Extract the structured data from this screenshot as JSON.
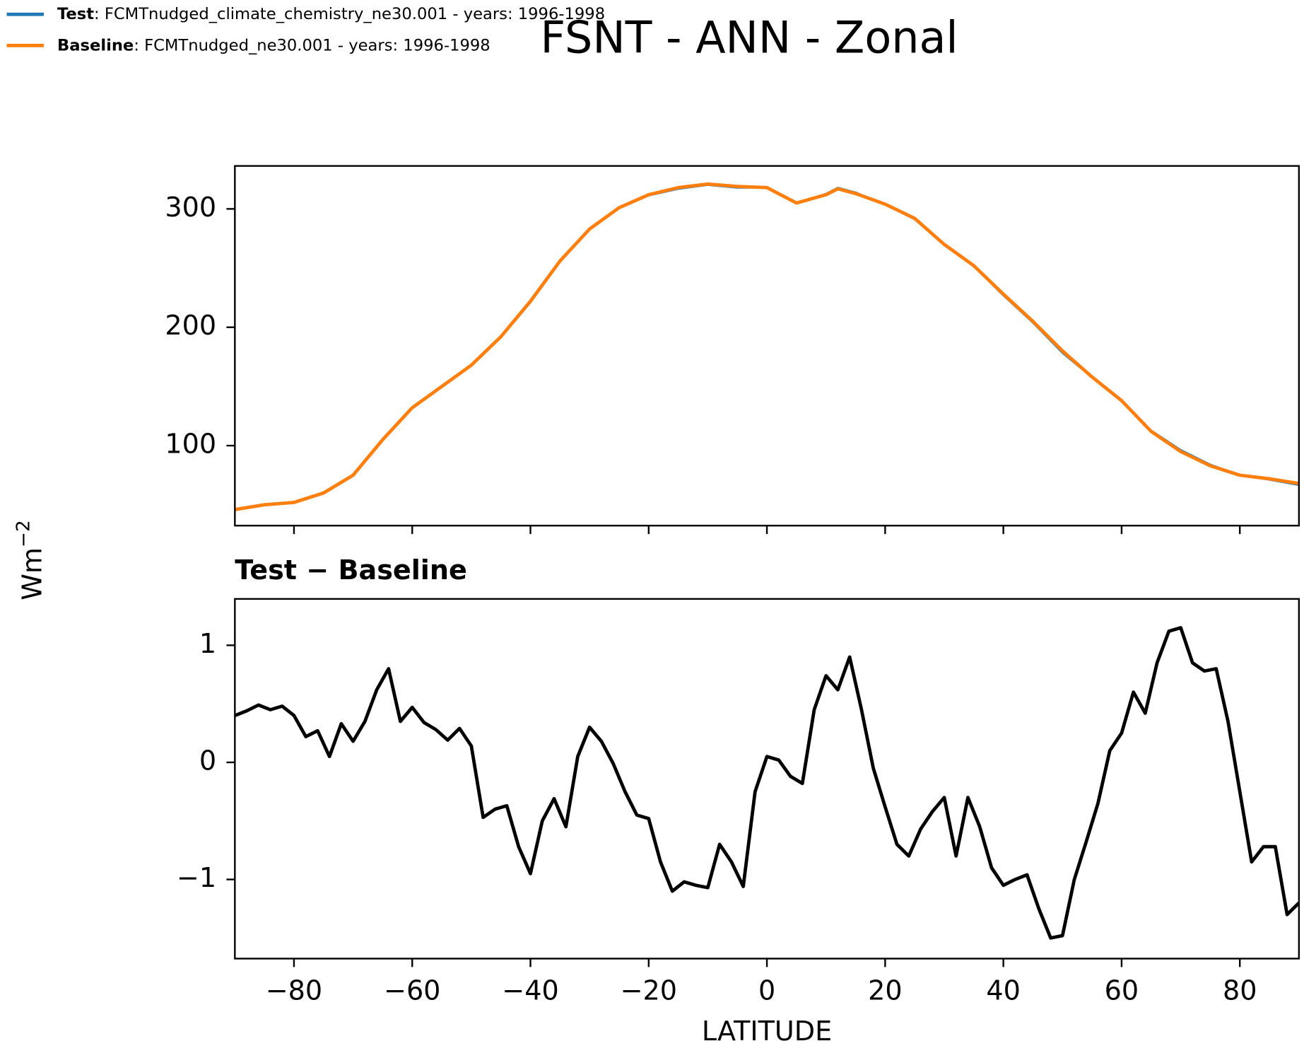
{
  "chart_data": [
    {
      "type": "line",
      "title": "FSNT - ANN - Zonal",
      "ylabel": "Wm",
      "ylabel_superscript": "−2",
      "x": [
        -90,
        -85,
        -80,
        -75,
        -70,
        -65,
        -60,
        -55,
        -50,
        -45,
        -40,
        -35,
        -30,
        -25,
        -20,
        -15,
        -10,
        -5,
        0,
        5,
        10,
        12,
        15,
        20,
        25,
        30,
        35,
        40,
        45,
        50,
        55,
        60,
        65,
        70,
        75,
        80,
        85,
        90
      ],
      "series": [
        {
          "name": "Test",
          "legend_label": ": FCMTnudged_climate_chemistry_ne30.001 - years: 1996-1998",
          "color": "#1f77b4",
          "values": [
            46.4,
            50.5,
            52.4,
            60.1,
            75.2,
            105.8,
            132.5,
            150.2,
            167.9,
            191.6,
            221.1,
            255.6,
            283.3,
            300.7,
            311.4,
            317,
            320.3,
            318,
            318.1,
            304.8,
            312.7,
            317.8,
            313.8,
            303.7,
            291.3,
            269.4,
            251.7,
            227,
            204,
            178.5,
            157.7,
            138.3,
            112.7,
            96.2,
            83.9,
            74.9,
            71.3,
            66.8
          ]
        },
        {
          "name": "Baseline",
          "legend_label": ": FCMTnudged_ne30.001 - years: 1996-1998",
          "color": "#ff7f0e",
          "values": [
            46,
            50,
            52,
            60,
            75,
            105,
            132,
            150,
            168,
            192,
            222,
            256,
            283,
            301,
            312,
            318,
            321,
            319,
            318,
            305,
            312,
            317,
            313,
            304,
            292,
            270,
            252,
            228,
            205,
            180,
            158,
            138,
            112,
            95,
            83,
            75,
            72,
            68
          ]
        }
      ],
      "xlim": [
        -90,
        90
      ],
      "xticks": [
        {
          "value": -80,
          "label": "−80"
        },
        {
          "value": -60,
          "label": "−60"
        },
        {
          "value": -40,
          "label": "−40"
        },
        {
          "value": -20,
          "label": "−20"
        },
        0,
        20,
        40,
        60,
        80
      ],
      "ylim": [
        32.4,
        336.3
      ],
      "yticks": [
        100,
        200,
        300
      ]
    },
    {
      "type": "line",
      "title": "Test − Baseline",
      "xlabel": "LATITUDE",
      "x": [
        -90,
        -88,
        -86,
        -84,
        -82,
        -80,
        -78,
        -76,
        -74,
        -72,
        -70,
        -68,
        -66,
        -64,
        -62,
        -60,
        -58,
        -56,
        -54,
        -52,
        -50,
        -48,
        -46,
        -44,
        -42,
        -40,
        -38,
        -36,
        -34,
        -32,
        -30,
        -28,
        -26,
        -24,
        -22,
        -20,
        -18,
        -16,
        -14,
        -12,
        -10,
        -8,
        -6,
        -4,
        -2,
        0,
        2,
        4,
        6,
        8,
        10,
        12,
        14,
        16,
        18,
        20,
        22,
        24,
        26,
        28,
        30,
        32,
        34,
        36,
        38,
        40,
        42,
        44,
        46,
        48,
        50,
        52,
        54,
        56,
        58,
        60,
        62,
        64,
        66,
        68,
        70,
        72,
        74,
        76,
        78,
        80,
        82,
        84,
        86,
        88,
        90
      ],
      "series": [
        {
          "color": "#000000",
          "values": [
            0.4,
            0.44,
            0.49,
            0.45,
            0.48,
            0.4,
            0.22,
            0.27,
            0.05,
            0.33,
            0.18,
            0.35,
            0.62,
            0.8,
            0.35,
            0.47,
            0.34,
            0.28,
            0.19,
            0.29,
            0.14,
            -0.47,
            -0.4,
            -0.37,
            -0.72,
            -0.95,
            -0.5,
            -0.31,
            -0.55,
            0.05,
            0.3,
            0.18,
            -0.01,
            -0.25,
            -0.45,
            -0.48,
            -0.85,
            -1.1,
            -1.02,
            -1.05,
            -1.07,
            -0.7,
            -0.85,
            -1.06,
            -0.25,
            0.05,
            0.02,
            -0.12,
            -0.18,
            0.45,
            0.74,
            0.62,
            0.9,
            0.45,
            -0.05,
            -0.38,
            -0.7,
            -0.8,
            -0.57,
            -0.42,
            -0.3,
            -0.8,
            -0.3,
            -0.55,
            -0.9,
            -1.05,
            -1.0,
            -0.96,
            -1.25,
            -1.5,
            -1.48,
            -1.0,
            -0.68,
            -0.35,
            0.1,
            0.25,
            0.6,
            0.42,
            0.85,
            1.12,
            1.15,
            0.85,
            0.78,
            0.8,
            0.35,
            -0.25,
            -0.85,
            -0.72,
            -0.72,
            -1.3,
            -1.2
          ]
        }
      ],
      "xlim": [
        -90,
        90
      ],
      "xticks": [
        {
          "value": -80,
          "label": "−80"
        },
        {
          "value": -60,
          "label": "−60"
        },
        {
          "value": -40,
          "label": "−40"
        },
        {
          "value": -20,
          "label": "−20"
        },
        0,
        20,
        40,
        60,
        80
      ],
      "ylim": [
        -1.676,
        1.396
      ],
      "yticks": [
        {
          "value": -1,
          "label": "−1"
        },
        0,
        1
      ]
    }
  ]
}
